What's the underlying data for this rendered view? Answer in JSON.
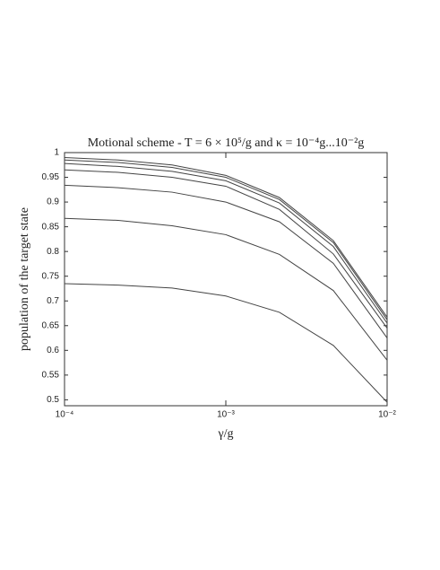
{
  "chart_data": {
    "type": "line",
    "title": "Motional scheme - T = 6 × 10⁵/g and κ = 10⁻⁴g...10⁻²g",
    "xlabel": "γ/g",
    "ylabel": "population of the target state",
    "xscale": "log",
    "x": [
      0.0001,
      0.000215,
      0.000464,
      0.001,
      0.00215,
      0.00464,
      0.01
    ],
    "xlim": [
      0.0001,
      0.01
    ],
    "xticks": [
      {
        "value": 0.0001,
        "label": "10⁻⁴"
      },
      {
        "value": 0.001,
        "label": "10⁻³"
      },
      {
        "value": 0.01,
        "label": "10⁻²"
      }
    ],
    "ylim": [
      0.488,
      1
    ],
    "yticks": [
      0.5,
      0.55,
      0.6,
      0.65,
      0.7,
      0.75,
      0.8,
      0.85,
      0.9,
      0.95,
      1
    ],
    "series": [
      {
        "color": "#444444",
        "values": [
          0.735,
          0.732,
          0.726,
          0.71,
          0.677,
          0.61,
          0.495
        ]
      },
      {
        "color": "#444444",
        "values": [
          0.867,
          0.863,
          0.852,
          0.834,
          0.794,
          0.721,
          0.58
        ]
      },
      {
        "color": "#444444",
        "values": [
          0.934,
          0.929,
          0.92,
          0.9,
          0.86,
          0.776,
          0.625
        ]
      },
      {
        "color": "#444444",
        "values": [
          0.965,
          0.96,
          0.95,
          0.932,
          0.885,
          0.795,
          0.645
        ]
      },
      {
        "color": "#444444",
        "values": [
          0.978,
          0.972,
          0.962,
          0.943,
          0.898,
          0.81,
          0.655
        ]
      },
      {
        "color": "#444444",
        "values": [
          0.985,
          0.98,
          0.97,
          0.95,
          0.905,
          0.818,
          0.662
        ]
      },
      {
        "color": "#444444",
        "values": [
          0.99,
          0.985,
          0.975,
          0.954,
          0.909,
          0.822,
          0.667
        ]
      }
    ]
  }
}
